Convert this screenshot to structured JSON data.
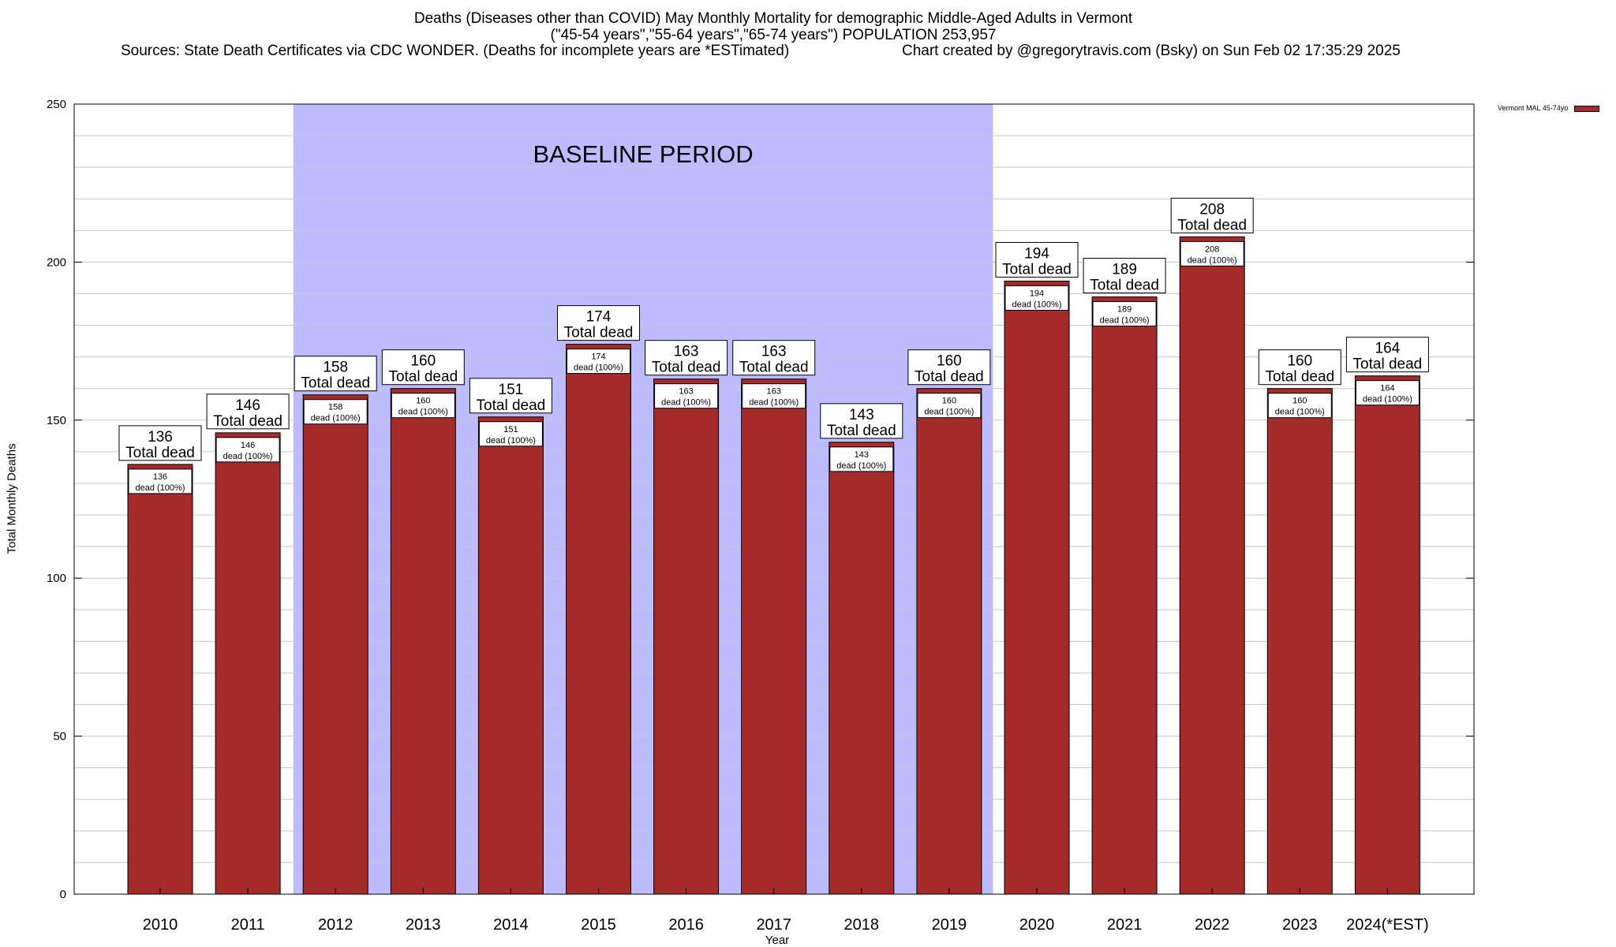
{
  "title": {
    "line1": "Deaths (Diseases other than COVID) May Monthly Mortality for demographic Middle-Aged Adults in Vermont",
    "line2": "(\"45-54 years\",\"55-64 years\",\"65-74 years\") POPULATION 253,957",
    "line3_source": "Sources: State Death Certificates via CDC WONDER. (Deaths for incomplete years are *ESTimated)",
    "line3_credit": "Chart created by @gregorytravis.com (Bsky) on Sun Feb 02 17:35:29 2025"
  },
  "colors": {
    "bar": "#a52a2a",
    "baseline": "#bcbcff",
    "grid": "#c8c8c8"
  },
  "chart_data": {
    "type": "bar",
    "categories": [
      "2010",
      "2011",
      "2012",
      "2013",
      "2014",
      "2015",
      "2016",
      "2017",
      "2018",
      "2019",
      "2020",
      "2021",
      "2022",
      "2023",
      "2024(*EST)"
    ],
    "series": [
      {
        "name": "Vermont MAL 45-74yo",
        "values": [
          136,
          146,
          158,
          160,
          151,
          174,
          163,
          163,
          143,
          160,
          194,
          189,
          208,
          160,
          164
        ]
      }
    ],
    "top_label_suffix": "Total dead",
    "inner_label_suffix": "dead (100%)",
    "xlabel": "Year",
    "ylabel": "Total Monthly Deaths",
    "ylim": [
      0,
      250
    ],
    "yticks": [
      0,
      50,
      100,
      150,
      200,
      250
    ],
    "baseline": {
      "label": "BASELINE PERIOD",
      "start": "2012",
      "end": "2019"
    },
    "legend": "Vermont MAL 45-74yo",
    "legend_position": "top-right",
    "grid": true
  }
}
